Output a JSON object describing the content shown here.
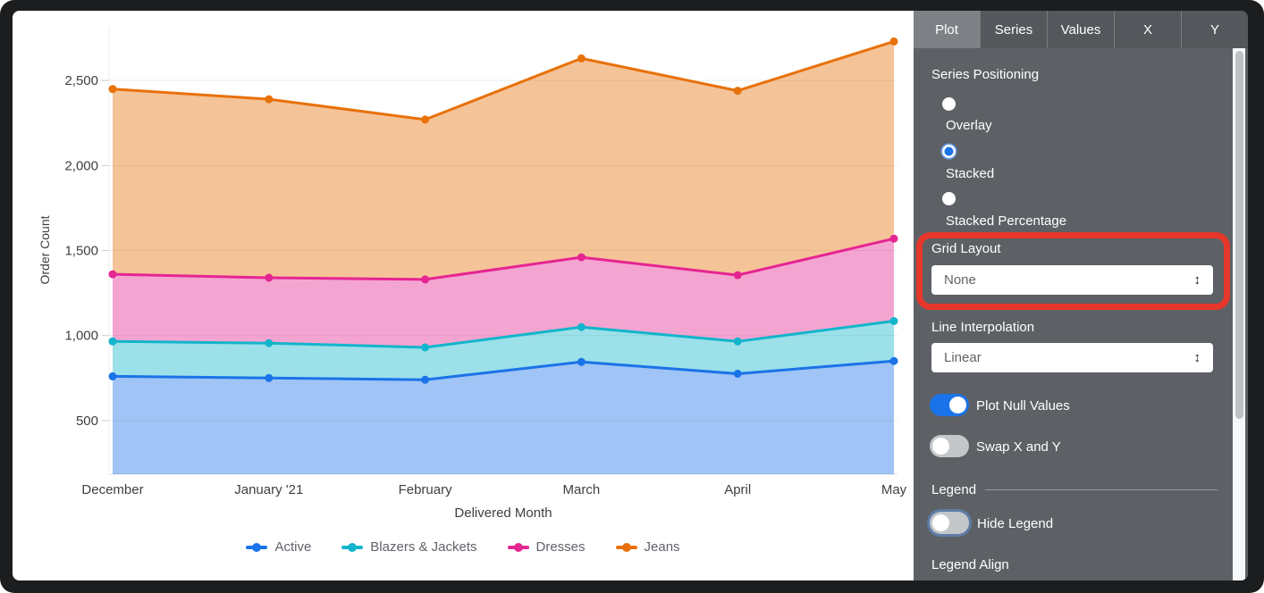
{
  "chart_data": {
    "type": "area",
    "series_positioning": "stacked",
    "title": "",
    "xlabel": "Delivered Month",
    "ylabel": "Order Count",
    "categories": [
      "December",
      "January '21",
      "February",
      "March",
      "April",
      "May"
    ],
    "yticks": [
      500,
      1000,
      1500,
      2000,
      2500
    ],
    "ylim": [
      184,
      2816
    ],
    "grid": "horizontal",
    "legend_position": "bottom",
    "series": [
      {
        "name": "Active",
        "color": "#1A73E8",
        "values": [
          760,
          750,
          740,
          845,
          775,
          850
        ],
        "stack_tops": [
          760,
          750,
          740,
          845,
          775,
          850
        ]
      },
      {
        "name": "Blazers & Jackets",
        "color": "#12B5CB",
        "values": [
          205,
          205,
          190,
          205,
          190,
          235
        ],
        "stack_tops": [
          965,
          955,
          930,
          1050,
          965,
          1085
        ]
      },
      {
        "name": "Dresses",
        "color": "#E52592",
        "values": [
          395,
          385,
          400,
          410,
          390,
          485
        ],
        "stack_tops": [
          1360,
          1340,
          1330,
          1460,
          1355,
          1570
        ]
      },
      {
        "name": "Jeans",
        "color": "#E8710A",
        "values": [
          1090,
          1050,
          940,
          1170,
          1085,
          1160
        ],
        "stack_tops": [
          2450,
          2390,
          2270,
          2630,
          2440,
          2730
        ]
      }
    ]
  },
  "panel": {
    "tabs": [
      {
        "label": "Plot",
        "active": true
      },
      {
        "label": "Series",
        "active": false
      },
      {
        "label": "Values",
        "active": false
      },
      {
        "label": "X",
        "active": false
      },
      {
        "label": "Y",
        "active": false
      }
    ],
    "series_positioning": {
      "label": "Series Positioning",
      "options": [
        {
          "label": "Overlay",
          "selected": false
        },
        {
          "label": "Stacked",
          "selected": true
        },
        {
          "label": "Stacked Percentage",
          "selected": false
        }
      ]
    },
    "grid_layout": {
      "label": "Grid Layout",
      "value": "None",
      "highlighted": true
    },
    "line_interpolation": {
      "label": "Line Interpolation",
      "value": "Linear"
    },
    "plot_null_values": {
      "label": "Plot Null Values",
      "on": true
    },
    "swap_x_y": {
      "label": "Swap X and Y",
      "on": false
    },
    "legend_section": {
      "label": "Legend",
      "hide_legend": {
        "label": "Hide Legend",
        "on": false
      },
      "legend_align_label": "Legend Align"
    },
    "dropdown_arrow": "↕"
  },
  "annotation": {
    "type": "red-highlight-box",
    "target": "grid-layout-section",
    "color": "#E6372B"
  },
  "colors": {
    "accent_blue": "#1A73E8",
    "panel_bg": "#5D6166",
    "tab_bar_bg": "#54575B",
    "tab_active_bg": "#7D8186",
    "axis_text": "#3C4043",
    "gridline": "#EAEAEA"
  }
}
